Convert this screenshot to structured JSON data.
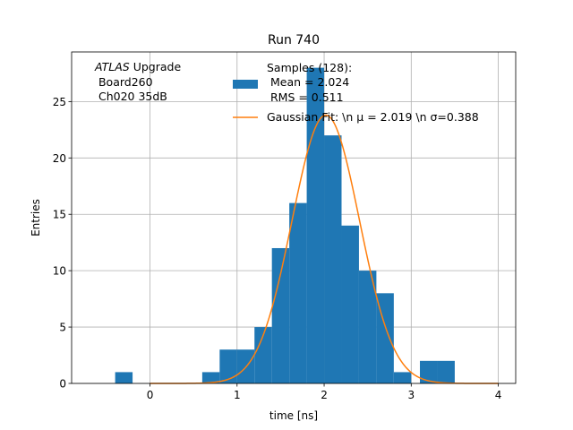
{
  "chart_data": {
    "type": "bar",
    "title": "Run 740",
    "xlabel": "time [ns]",
    "ylabel": "Entries",
    "xlim": [
      -0.9,
      4.2
    ],
    "ylim": [
      0,
      29.4
    ],
    "xticks": [
      0,
      1,
      2,
      3,
      4
    ],
    "yticks": [
      0,
      5,
      10,
      15,
      20,
      25
    ],
    "grid": true,
    "legend_position": "top-center",
    "annotation": {
      "italic": "ATLAS",
      "rest": " Upgrade",
      "line2": " Board260",
      "line3": " Ch020 35dB"
    },
    "histogram": {
      "name_lines": [
        "Samples (128):",
        " Mean = 2.024",
        " RMS = 0.511"
      ],
      "color": "#1f77b4",
      "bin_width": 0.2,
      "bins": [
        {
          "x": -0.3,
          "count": 1
        },
        {
          "x": 0.7,
          "count": 1
        },
        {
          "x": 0.9,
          "count": 3
        },
        {
          "x": 1.1,
          "count": 3
        },
        {
          "x": 1.3,
          "count": 5
        },
        {
          "x": 1.5,
          "count": 12
        },
        {
          "x": 1.7,
          "count": 16
        },
        {
          "x": 1.9,
          "count": 28
        },
        {
          "x": 2.1,
          "count": 22
        },
        {
          "x": 2.3,
          "count": 14
        },
        {
          "x": 2.5,
          "count": 10
        },
        {
          "x": 2.7,
          "count": 8
        },
        {
          "x": 2.9,
          "count": 1
        },
        {
          "x": 3.2,
          "count": 2
        },
        {
          "x": 3.4,
          "count": 2
        }
      ]
    },
    "fit": {
      "name": "Gaussian Fit: \\n μ = 2.019 \\n σ=0.388",
      "color": "#ff7f0e",
      "mu": 2.019,
      "sigma": 0.388,
      "amplitude": 23.8,
      "x_range": [
        0.0,
        4.0
      ]
    }
  }
}
